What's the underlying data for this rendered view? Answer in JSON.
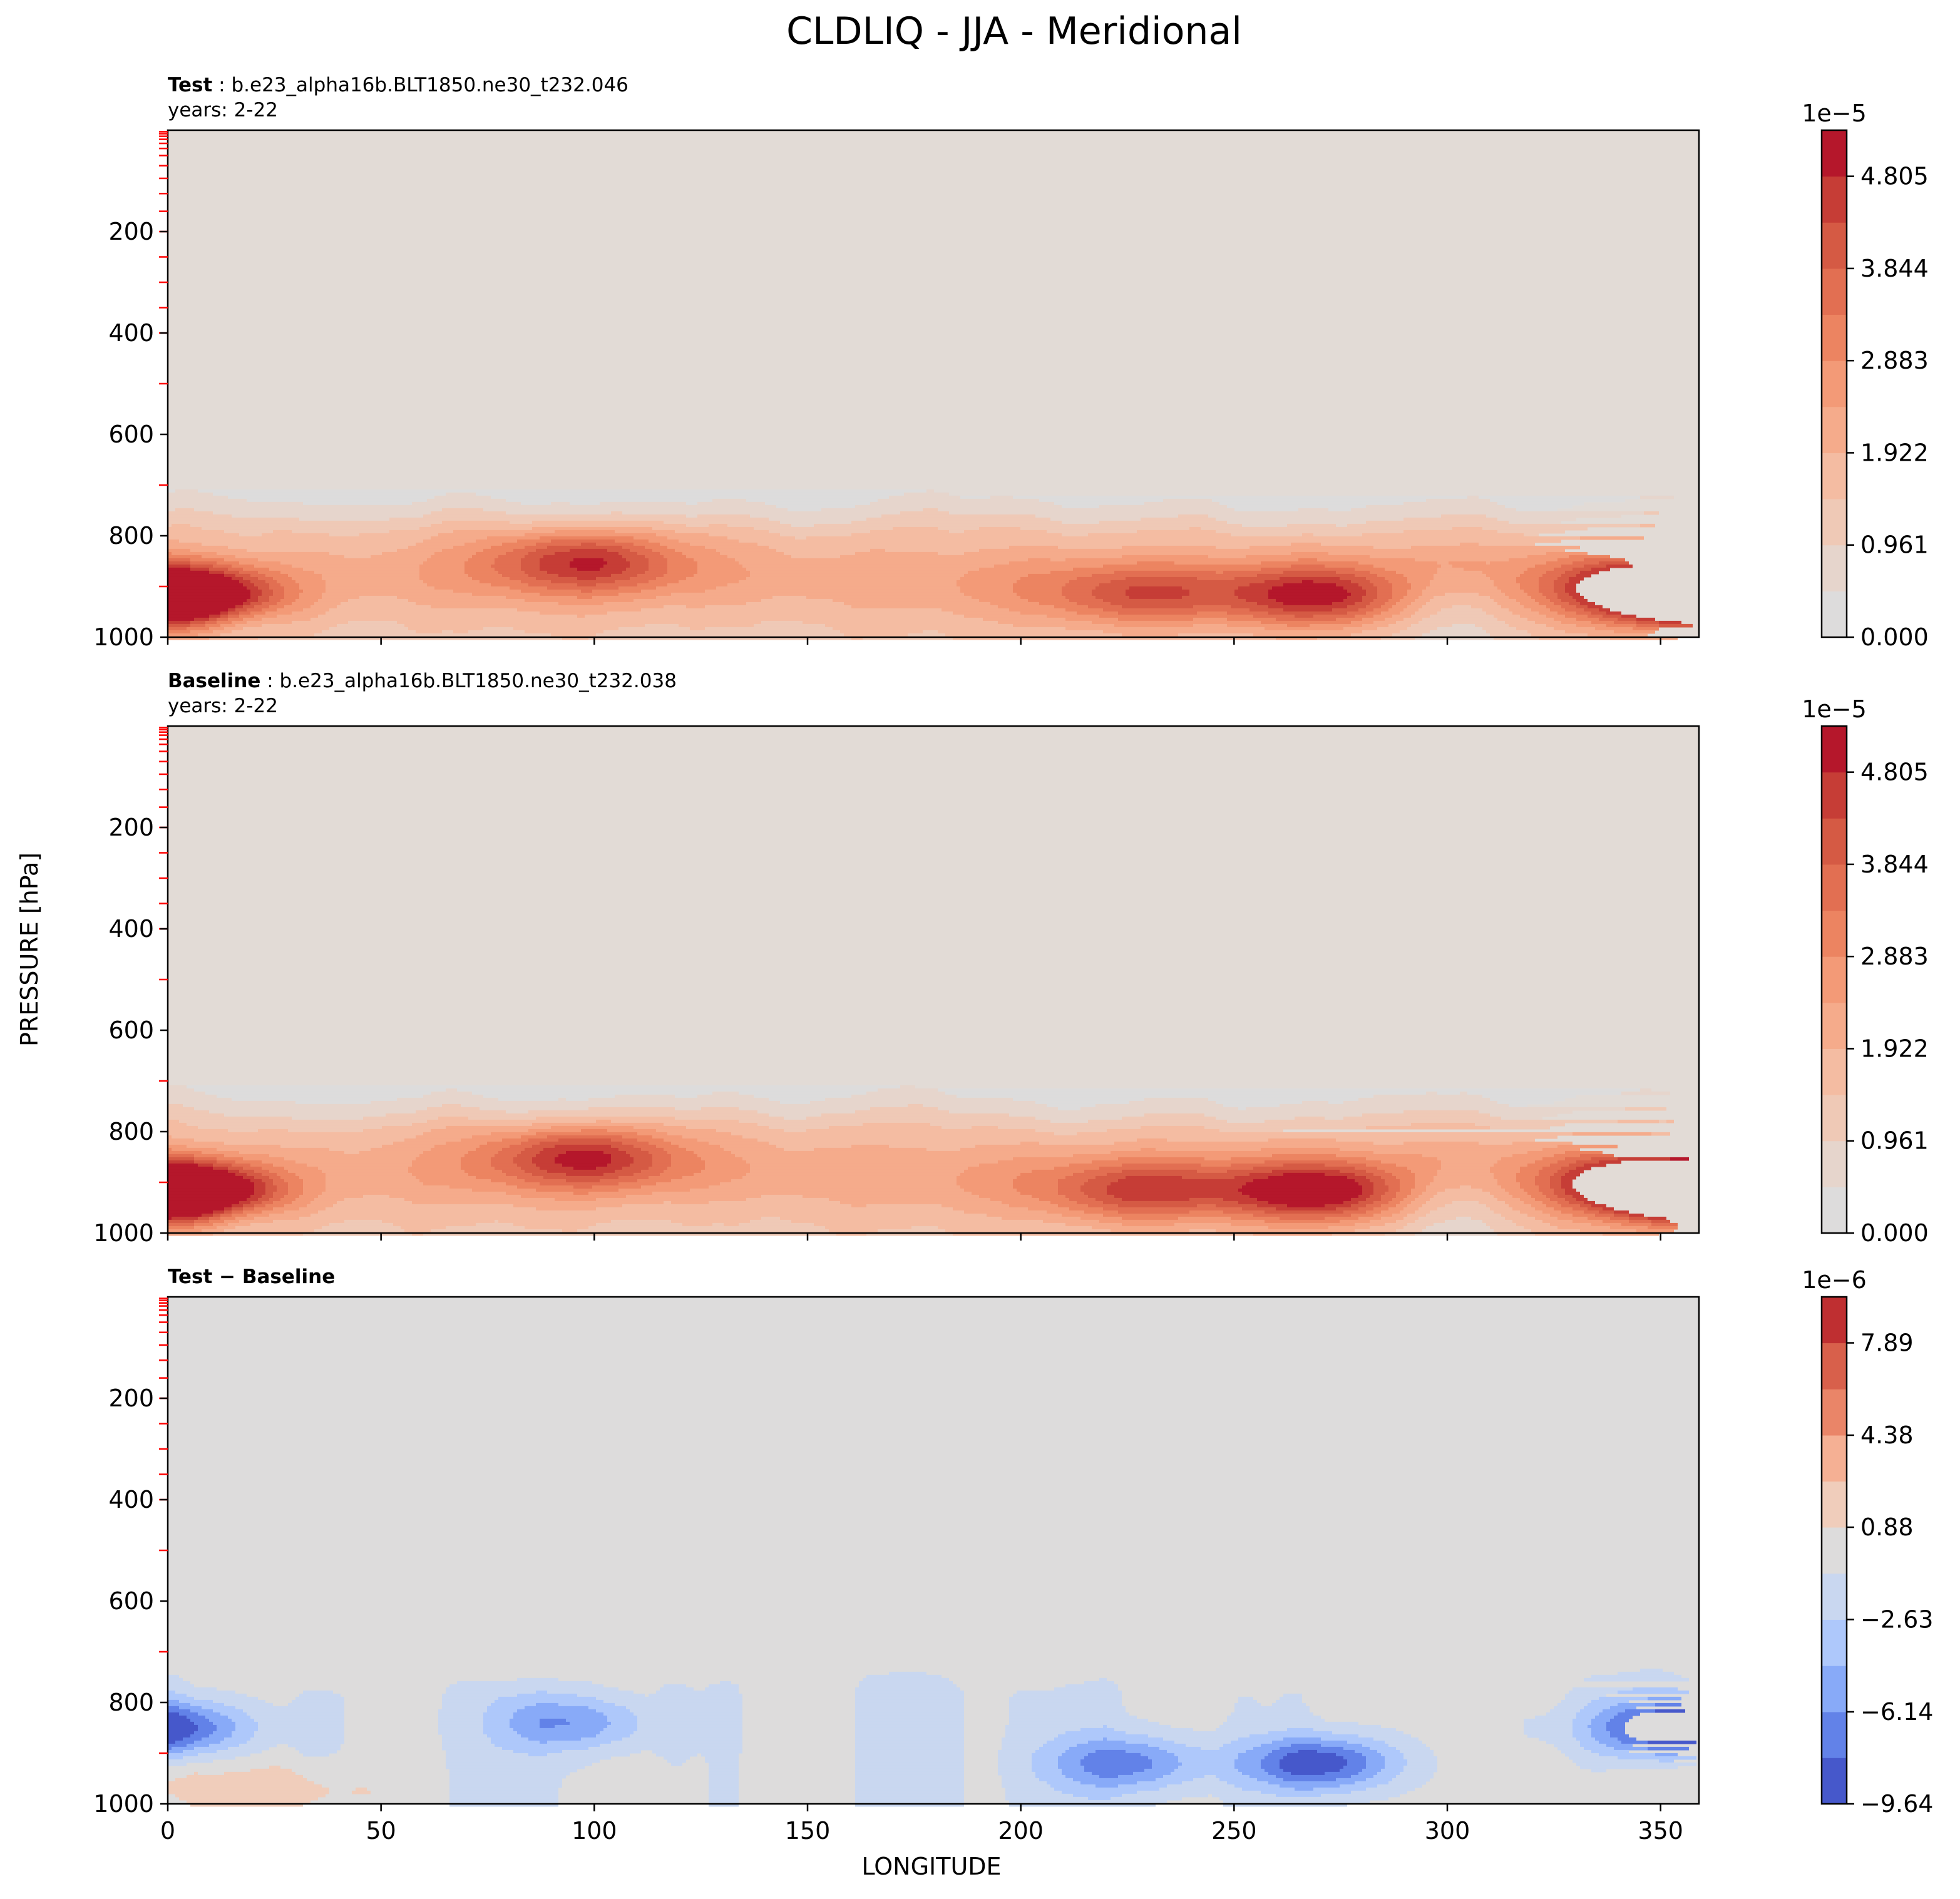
{
  "figure": {
    "suptitle": "CLDLIQ - JJA - Meridional",
    "ylabel": "PRESSURE [hPa]",
    "xlabel": "LONGITUDE"
  },
  "chart_data": [
    {
      "type": "heatmap",
      "panel_label_bold": "Test",
      "panel_label_rest": ": b.e23_alpha16b.BLT1850.ne30_t232.046",
      "years": "years: 2-22",
      "x_ticks": [
        0,
        50,
        100,
        150,
        200,
        250,
        300,
        350
      ],
      "xlim": [
        0,
        359
      ],
      "y_ticks": [
        200,
        400,
        600,
        800,
        1000
      ],
      "ylim": [
        1000,
        0
      ],
      "colorbar": {
        "exponent": "1e−5",
        "levels": [
          0,
          0.4805,
          0.961,
          1.4415,
          1.922,
          2.4025,
          2.883,
          3.3635,
          3.844,
          4.3245,
          4.805,
          5.2855
        ],
        "tick_values": [
          0,
          0.961,
          1.922,
          2.883,
          3.844,
          4.805
        ],
        "tick_labels": [
          "0.000",
          "0.961",
          "1.922",
          "2.883",
          "3.844",
          "4.805"
        ],
        "colors": [
          "#dddcdc",
          "#e6d5cc",
          "#efc9b6",
          "#f4bca2",
          "#f5ab8b",
          "#f39a77",
          "#ec8461",
          "#e26f52",
          "#d55a44",
          "#c63d36",
          "#b5172b"
        ]
      },
      "features": [
        {
          "lon": 5,
          "p": 925,
          "peak": 4.4
        },
        {
          "lon": 98,
          "p": 850,
          "peak": 3.7
        },
        {
          "lon": 228,
          "p": 920,
          "peak": 3.2
        },
        {
          "lon": 270,
          "p": 920,
          "peak": 4.3
        },
        {
          "lon": 345,
          "p": 900,
          "peak": 3.5
        },
        {
          "lon": 359,
          "p": 920,
          "peak": 4.4
        }
      ]
    },
    {
      "type": "heatmap",
      "panel_label_bold": "Baseline",
      "panel_label_rest": ": b.e23_alpha16b.BLT1850.ne30_t232.038",
      "years": "years: 2-22",
      "x_ticks": [
        0,
        50,
        100,
        150,
        200,
        250,
        300,
        350
      ],
      "xlim": [
        0,
        359
      ],
      "y_ticks": [
        200,
        400,
        600,
        800,
        1000
      ],
      "ylim": [
        1000,
        0
      ],
      "colorbar": {
        "exponent": "1e−5",
        "levels": [
          0,
          0.4805,
          0.961,
          1.4415,
          1.922,
          2.4025,
          2.883,
          3.3635,
          3.844,
          4.3245,
          4.805,
          5.2855
        ],
        "tick_values": [
          0,
          0.961,
          1.922,
          2.883,
          3.844,
          4.805
        ],
        "tick_labels": [
          "0.000",
          "0.961",
          "1.922",
          "2.883",
          "3.844",
          "4.805"
        ],
        "colors": [
          "#dddcdc",
          "#e6d5cc",
          "#efc9b6",
          "#f4bca2",
          "#f5ab8b",
          "#f39a77",
          "#ec8461",
          "#e26f52",
          "#d55a44",
          "#c63d36",
          "#b5172b"
        ]
      },
      "features": [
        {
          "lon": 5,
          "p": 925,
          "peak": 4.6
        },
        {
          "lon": 98,
          "p": 850,
          "peak": 3.9
        },
        {
          "lon": 228,
          "p": 920,
          "peak": 3.5
        },
        {
          "lon": 270,
          "p": 920,
          "peak": 4.8
        },
        {
          "lon": 345,
          "p": 900,
          "peak": 3.7
        },
        {
          "lon": 359,
          "p": 920,
          "peak": 4.6
        }
      ]
    },
    {
      "type": "heatmap",
      "panel_label_bold": "Test − Baseline",
      "panel_label_rest": "",
      "years": "",
      "x_ticks": [
        0,
        50,
        100,
        150,
        200,
        250,
        300,
        350
      ],
      "xlim": [
        0,
        359
      ],
      "y_ticks": [
        200,
        400,
        600,
        800,
        1000
      ],
      "ylim": [
        1000,
        0
      ],
      "colorbar": {
        "exponent": "1e−6",
        "levels": [
          -9.64,
          -7.885,
          -6.14,
          -4.385,
          -2.63,
          -0.875,
          0.88,
          2.63,
          4.38,
          6.135,
          7.89,
          9.64
        ],
        "tick_values": [
          -9.64,
          -6.14,
          -2.63,
          0.88,
          4.38,
          7.89
        ],
        "tick_labels": [
          "−9.64",
          "−6.14",
          "−2.63",
          "0.88",
          "4.38",
          "7.89"
        ],
        "colors": [
          "#4658cb",
          "#6282e8",
          "#88aaf8",
          "#aec8fb",
          "#c9d7f0",
          "#dddcdc",
          "#f0cdbb",
          "#f5b094",
          "#ea8568",
          "#d8604b",
          "#bf2f31"
        ]
      },
      "features": [
        {
          "lon": 270,
          "p": 920,
          "peak": -9.0
        },
        {
          "lon": 225,
          "p": 920,
          "peak": -6.5
        },
        {
          "lon": 350,
          "p": 850,
          "peak": -7.0
        },
        {
          "lon": 95,
          "p": 840,
          "peak": -5.5
        },
        {
          "lon": 5,
          "p": 850,
          "peak": -5.0
        },
        {
          "lon": 30,
          "p": 975,
          "peak": 2.5
        },
        {
          "lon": 352,
          "p": 960,
          "peak": 2.5
        }
      ]
    }
  ]
}
